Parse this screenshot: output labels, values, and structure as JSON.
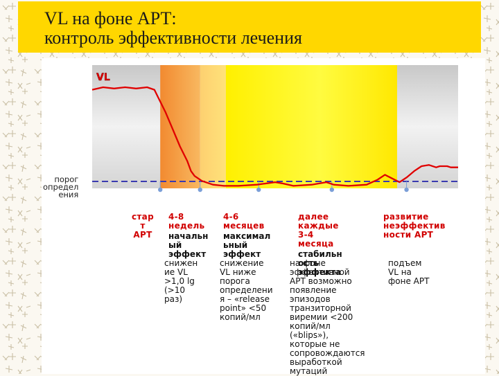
{
  "title": {
    "line1": "VL на фоне АРТ:",
    "line2": "контроль эффективности лечения"
  },
  "chart_data": {
    "type": "line",
    "series": [
      {
        "name": "VL",
        "points": [
          [
            0,
            80
          ],
          [
            0.03,
            82
          ],
          [
            0.06,
            81
          ],
          [
            0.09,
            82
          ],
          [
            0.12,
            81
          ],
          [
            0.15,
            82
          ],
          [
            0.17,
            80
          ],
          [
            0.18,
            74
          ],
          [
            0.2,
            62
          ],
          [
            0.22,
            48
          ],
          [
            0.24,
            34
          ],
          [
            0.26,
            22
          ],
          [
            0.27,
            14
          ],
          [
            0.28,
            10
          ],
          [
            0.3,
            6
          ],
          [
            0.33,
            3
          ],
          [
            0.36,
            2
          ],
          [
            0.4,
            2
          ],
          [
            0.45,
            3
          ],
          [
            0.5,
            5
          ],
          [
            0.52,
            4
          ],
          [
            0.55,
            2
          ],
          [
            0.6,
            3
          ],
          [
            0.64,
            5
          ],
          [
            0.66,
            3
          ],
          [
            0.7,
            2
          ],
          [
            0.75,
            3
          ],
          [
            0.78,
            7
          ],
          [
            0.8,
            11
          ],
          [
            0.82,
            8
          ],
          [
            0.84,
            5
          ],
          [
            0.86,
            9
          ],
          [
            0.88,
            14
          ],
          [
            0.9,
            18
          ],
          [
            0.92,
            19
          ],
          [
            0.94,
            17
          ],
          [
            0.95,
            18
          ],
          [
            0.97,
            18
          ],
          [
            0.98,
            17
          ],
          [
            1,
            17
          ]
        ]
      }
    ],
    "series_label": "VL",
    "threshold_label": "порог\nопредел\nения",
    "phase_markers": [
      0.186,
      0.295,
      0.455,
      0.655,
      0.859
    ],
    "phases": [
      {
        "label": "стар\nт\nАРТ"
      },
      {
        "label": "4-8\nнедель",
        "effect": "начальн\nый\nэффект",
        "desc": "снижен\nие VL\n>1,0 lg\n(>10\nраз)"
      },
      {
        "label": "4-6\nмесяцев",
        "effect": "максимал\nьный\nэффект",
        "desc": "снижение\nVL ниже\nпорога\nопределени\nя – «release\npoint» <50\nкопий/мл"
      },
      {
        "label": "далее\nкаждые\n3-4\nмесяца",
        "effect": "стабильн\nость\nэффекта",
        "desc": "на фоне\nэффективной\nАРТ возможно\nпоявление\nэпизодов\nтранзиторной\nвиремии <200\nкопий/мл\n(«blips»),\nкоторые не\nсопровождаются\nвыработкой\nмутаций"
      },
      {
        "label": "развитие\nнеэффектив\nности АРТ",
        "desc": "подъем\nVL на\nфоне АРТ"
      }
    ],
    "colors": {
      "line": "#e00000",
      "threshold": "#3a3ab0",
      "marker": "#7b9fd8",
      "label": "#d10000",
      "band_orange": "#f4a040",
      "band_yellow": "#fff000",
      "band_gray": "#e4e4e4"
    }
  }
}
